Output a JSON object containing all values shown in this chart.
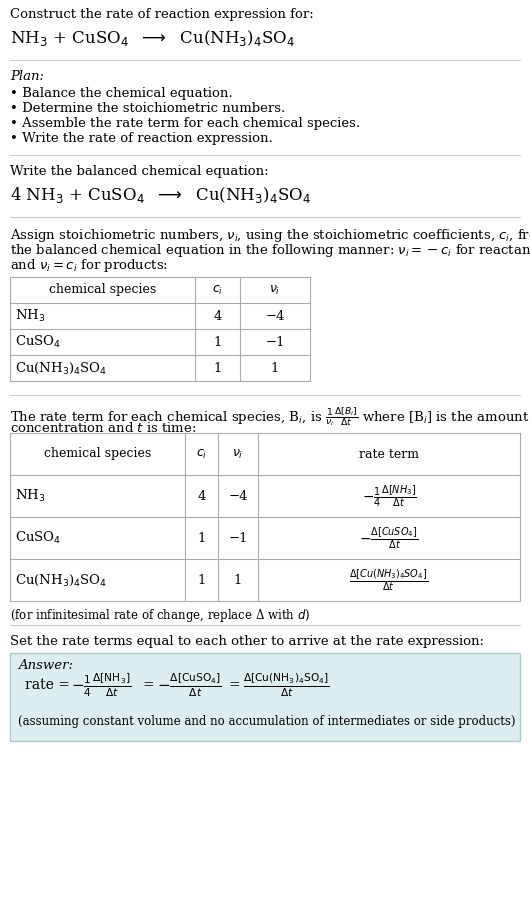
{
  "bg_color": "#ffffff",
  "text_color": "#000000",
  "font_family": "DejaVu Serif",
  "title_line1": "Construct the rate of reaction expression for:",
  "plan_title": "Plan:",
  "plan_items": [
    "• Balance the chemical equation.",
    "• Determine the stoichiometric numbers.",
    "• Assemble the rate term for each chemical species.",
    "• Write the rate of reaction expression."
  ],
  "balanced_label": "Write the balanced chemical equation:",
  "stoich_intro_lines": [
    "Assign stoichiometric numbers, $\\nu_i$, using the stoichiometric coefficients, $c_i$, from",
    "the balanced chemical equation in the following manner: $\\nu_i = -c_i$ for reactants",
    "and $\\nu_i = c_i$ for products:"
  ],
  "table1_headers": [
    "chemical species",
    "$c_i$",
    "$\\nu_i$"
  ],
  "table1_rows": [
    [
      "NH$_3$",
      "4",
      "−4"
    ],
    [
      "CuSO$_4$",
      "1",
      "−1"
    ],
    [
      "Cu(NH$_3$)$_4$SO$_4$",
      "1",
      "1"
    ]
  ],
  "rate_intro_line1": "The rate term for each chemical species, B$_i$, is $\\frac{1}{\\nu_i}\\frac{\\Delta[B_i]}{\\Delta t}$ where [B$_i$] is the amount",
  "rate_intro_line2": "concentration and $t$ is time:",
  "table2_headers": [
    "chemical species",
    "$c_i$",
    "$\\nu_i$",
    "rate term"
  ],
  "table2_rows": [
    [
      "NH$_3$",
      "4",
      "−4",
      "$-\\frac{1}{4}\\frac{\\Delta[NH_3]}{\\Delta t}$"
    ],
    [
      "CuSO$_4$",
      "1",
      "−1",
      "$-\\frac{\\Delta[CuSO_4]}{\\Delta t}$"
    ],
    [
      "Cu(NH$_3$)$_4$SO$_4$",
      "1",
      "1",
      "$\\frac{\\Delta[Cu(NH_3)_4SO_4]}{\\Delta t}$"
    ]
  ],
  "infinitesimal_note": "(for infinitesimal rate of change, replace Δ with $d$)",
  "set_equal_text": "Set the rate terms equal to each other to arrive at the rate expression:",
  "answer_label": "Answer:",
  "answer_box_color": "#ddeef0",
  "answer_box_edge": "#aacccc",
  "answer_note": "(assuming constant volume and no accumulation of intermediates or side products)"
}
